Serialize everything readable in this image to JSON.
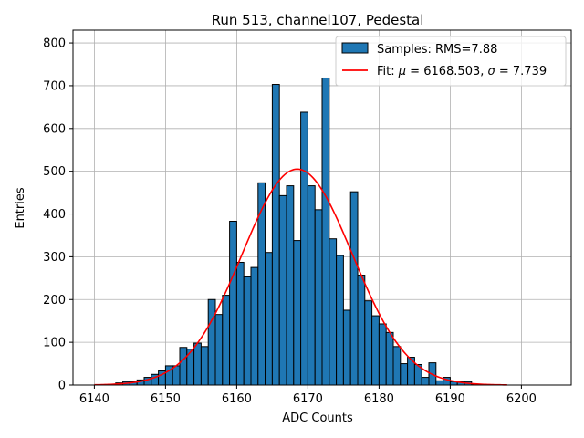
{
  "chart_data": {
    "type": "bar",
    "title": "Run 513, channel107, Pedestal",
    "xlabel": "ADC Counts",
    "ylabel": "Entries",
    "xlim": [
      6137,
      6207
    ],
    "ylim": [
      0,
      830
    ],
    "xticks": [
      6140,
      6150,
      6160,
      6170,
      6180,
      6190,
      6200
    ],
    "yticks": [
      0,
      100,
      200,
      300,
      400,
      500,
      600,
      700,
      800
    ],
    "grid": true,
    "legend_position": "top-right",
    "colors": {
      "bars": "#1f77b4",
      "bar_edge": "#000000",
      "fit": "#ff0000"
    },
    "histogram": {
      "name": "Samples: RMS=7.88",
      "bin_width": 1,
      "bins_left": [
        6142,
        6143,
        6144,
        6145,
        6146,
        6147,
        6148,
        6149,
        6150,
        6151,
        6152,
        6153,
        6154,
        6155,
        6156,
        6157,
        6158,
        6159,
        6160,
        6161,
        6162,
        6163,
        6164,
        6165,
        6166,
        6167,
        6168,
        6169,
        6170,
        6171,
        6172,
        6173,
        6174,
        6175,
        6176,
        6177,
        6178,
        6179,
        6180,
        6181,
        6182,
        6183,
        6184,
        6185,
        6186,
        6187,
        6188,
        6189,
        6190,
        6191,
        6192,
        6193
      ],
      "values": [
        2,
        5,
        8,
        8,
        12,
        18,
        25,
        33,
        45,
        45,
        88,
        84,
        98,
        90,
        200,
        165,
        210,
        383,
        287,
        253,
        275,
        473,
        310,
        703,
        443,
        466,
        338,
        638,
        466,
        410,
        718,
        342,
        303,
        175,
        452,
        257,
        197,
        162,
        143,
        123,
        90,
        50,
        65,
        48,
        18,
        52,
        10,
        18,
        8,
        8,
        8,
        2
      ]
    },
    "fit": {
      "label_prefix": "Fit: ",
      "label_mu": "μ",
      "label_mu_value": " = 6168.503, ",
      "label_sigma": "σ",
      "label_sigma_value": " = 7.739",
      "mu": 6168.503,
      "sigma": 7.739,
      "amplitude": 505,
      "x_range": [
        6140,
        6198
      ]
    }
  }
}
